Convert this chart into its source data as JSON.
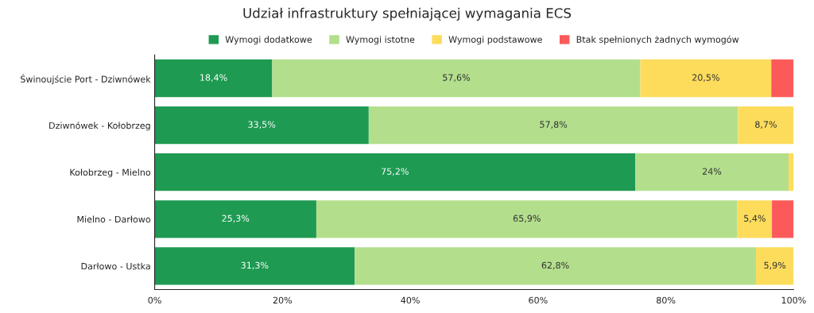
{
  "chart_data": {
    "type": "bar",
    "orientation": "horizontal",
    "stacked": true,
    "title": "Udział infrastruktury spełniającej wymagania ECS",
    "categories": [
      "Świnoujście Port - Dziwnówek",
      "Dziwnówek - Kołobrzeg",
      "Kołobrzeg - Mielno",
      "Mielno - Darłowo",
      "Darłowo - Ustka"
    ],
    "series": [
      {
        "name": "Wymogi dodatkowe",
        "color": "#1e9a52",
        "values": [
          18.4,
          33.5,
          75.2,
          25.3,
          31.3
        ],
        "value_labels": [
          "18,4%",
          "33,5%",
          "75,2%",
          "25,3%",
          "31,3%"
        ]
      },
      {
        "name": "Wymogi istotne",
        "color": "#b3df8c",
        "values": [
          57.6,
          57.8,
          24,
          65.9,
          62.8
        ],
        "value_labels": [
          "57,6%",
          "57,8%",
          "24%",
          "65,9%",
          "62,8%"
        ]
      },
      {
        "name": "Wymogi podstawowe",
        "color": "#fddc5c",
        "values": [
          20.5,
          8.7,
          0.8,
          5.4,
          5.9
        ],
        "value_labels": [
          "20,5%",
          "8,7%",
          null,
          "5,4%",
          "5,9%"
        ]
      },
      {
        "name": "Btak spełnionych żadnych wymogów",
        "color": "#fc5a5a",
        "values": [
          3.5,
          0,
          0,
          3.4,
          0
        ],
        "value_labels": [
          null,
          null,
          null,
          null,
          null
        ]
      }
    ],
    "xlim": [
      0,
      100
    ],
    "xticks": [
      {
        "value": 0,
        "label": "0%"
      },
      {
        "value": 20,
        "label": "20%"
      },
      {
        "value": 40,
        "label": "40%"
      },
      {
        "value": 60,
        "label": "60%"
      },
      {
        "value": 80,
        "label": "80%"
      },
      {
        "value": 100,
        "label": "100%"
      }
    ],
    "grid": false,
    "legend": "top"
  }
}
